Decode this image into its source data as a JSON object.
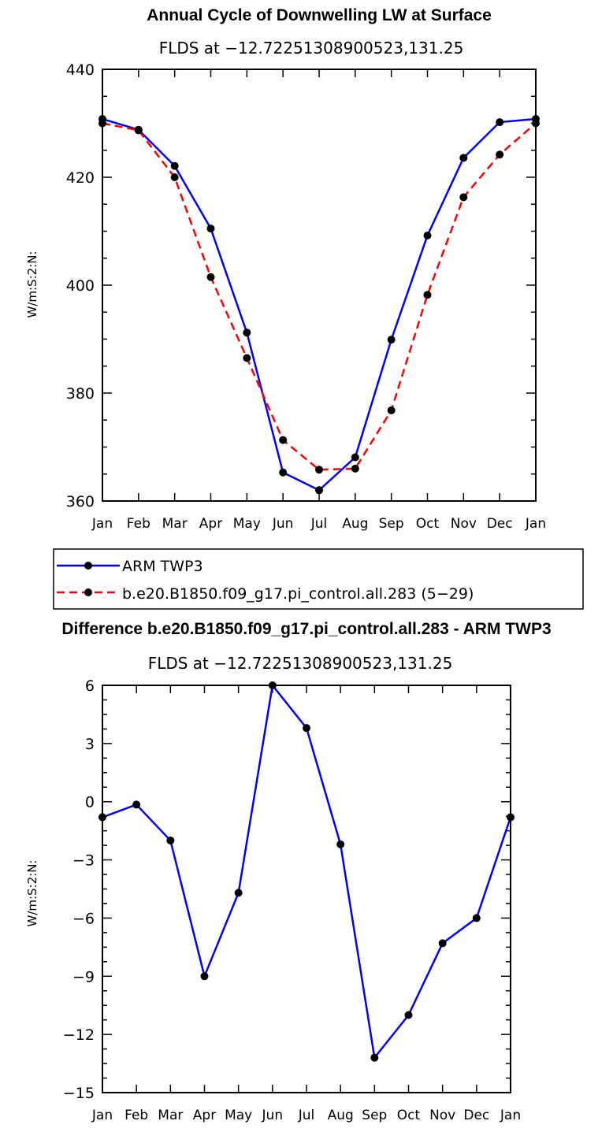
{
  "chart_data": [
    {
      "type": "line",
      "title": "Annual Cycle of Downwelling LW at Surface",
      "subtitle": "FLDS at −12.72251308900523,131.25",
      "ylabel": "W/m:S:2:N:",
      "categories": [
        "Jan",
        "Feb",
        "Mar",
        "Apr",
        "May",
        "Jun",
        "Jul",
        "Aug",
        "Sep",
        "Oct",
        "Nov",
        "Dec",
        "Jan"
      ],
      "ylim": [
        360,
        440
      ],
      "yticks": [
        360,
        380,
        400,
        420,
        440
      ],
      "series": [
        {
          "name": "ARM TWP3",
          "color": "#0000ff",
          "dash": "solid",
          "values": [
            430.8,
            428.8,
            422.1,
            410.5,
            391.2,
            365.3,
            362.0,
            368.1,
            389.9,
            409.2,
            423.6,
            430.2,
            430.8
          ]
        },
        {
          "name": "b.e20.B1850.f09_g17.pi_control.all.283 (5−29)",
          "color": "#ff0000",
          "dash": "dashed",
          "values": [
            430.0,
            428.7,
            420.0,
            401.5,
            386.5,
            371.3,
            365.8,
            366.0,
            376.8,
            398.2,
            416.3,
            424.2,
            430.0
          ]
        }
      ]
    },
    {
      "type": "line",
      "title": "Difference b.e20.B1850.f09_g17.pi_control.all.283 - ARM TWP3",
      "subtitle": "FLDS at −12.72251308900523,131.25",
      "ylabel": "W/m:S:2:N:",
      "categories": [
        "Jan",
        "Feb",
        "Mar",
        "Apr",
        "May",
        "Jun",
        "Jul",
        "Aug",
        "Sep",
        "Oct",
        "Nov",
        "Dec",
        "Jan"
      ],
      "ylim": [
        -15,
        6
      ],
      "yticks": [
        -15,
        -12,
        -9,
        -6,
        -3,
        0,
        3,
        6
      ],
      "ytick_labels": [
        "−15",
        "−12",
        "−9",
        "−6",
        "−3",
        "0",
        "3",
        "6"
      ],
      "series": [
        {
          "name": "",
          "color": "#0000ff",
          "dash": "solid",
          "values": [
            -0.8,
            -0.15,
            -2.0,
            -9.0,
            -4.7,
            6.0,
            3.8,
            -2.2,
            -13.2,
            -11.0,
            -7.3,
            -6.0,
            -0.8
          ]
        }
      ]
    }
  ]
}
